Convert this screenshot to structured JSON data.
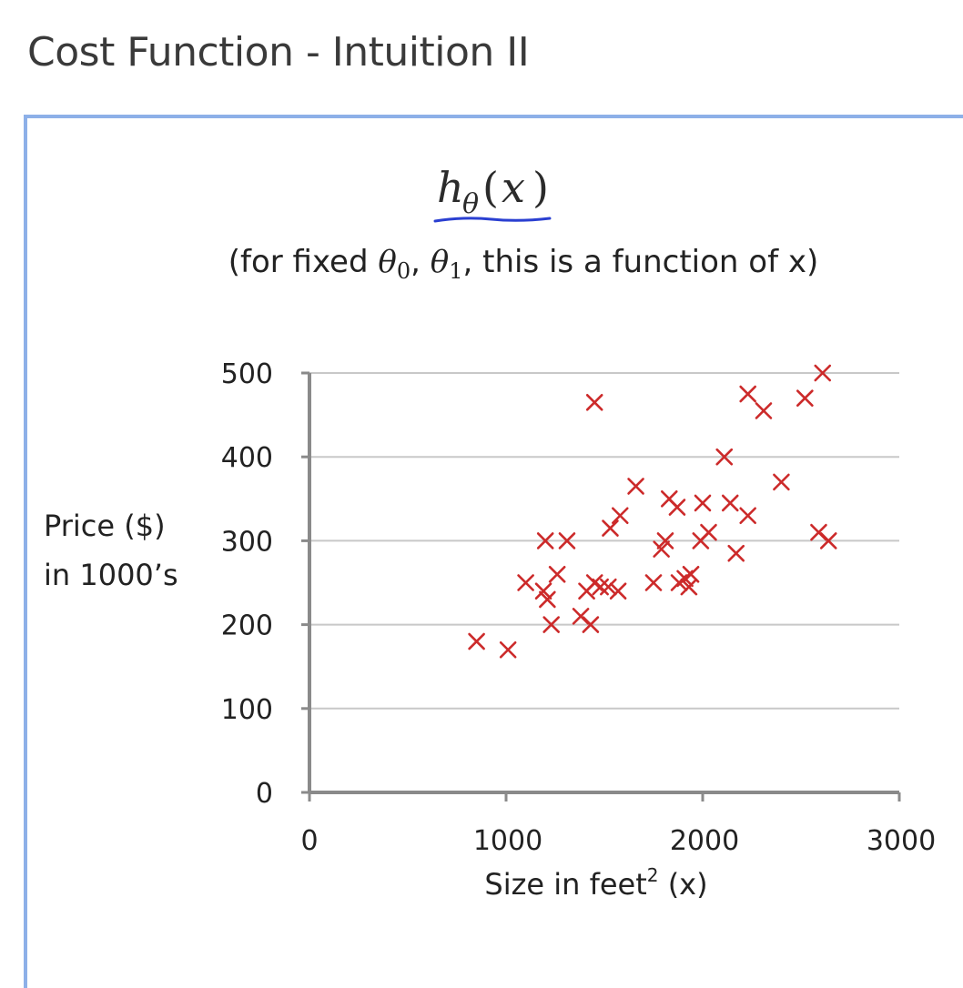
{
  "page": {
    "title": "Cost Function - Intuition II"
  },
  "colors": {
    "frame_border": "#8db0e8",
    "marker": "#cc2a2a",
    "axis": "#8a8a8a",
    "grid": "#c8c8c8",
    "underline": "#2a3fd1"
  },
  "figure": {
    "formula": {
      "h": "h",
      "theta": "θ",
      "x": "x"
    },
    "caption": {
      "prefix": "(for fixed ",
      "theta0": "θ",
      "sub0": "0",
      "theta1": "θ",
      "sub1": "1",
      "suffix": ", this is a function of x)"
    }
  },
  "chart_data": {
    "type": "scatter",
    "ylabel_line1": "Price ($)",
    "ylabel_line2": "in 1000’s",
    "xlabel_main": "Size in feet",
    "xlabel_sup": "2",
    "xlabel_tail": " (x)",
    "xlim": [
      0,
      3000
    ],
    "ylim": [
      0,
      500
    ],
    "xticks": [
      0,
      1000,
      2000,
      3000
    ],
    "yticks": [
      0,
      100,
      200,
      300,
      400,
      500
    ],
    "grid": true,
    "marker": "x",
    "points": [
      [
        850,
        180
      ],
      [
        1010,
        170
      ],
      [
        1100,
        250
      ],
      [
        1190,
        240
      ],
      [
        1210,
        230
      ],
      [
        1230,
        200
      ],
      [
        1260,
        260
      ],
      [
        1200,
        300
      ],
      [
        1310,
        300
      ],
      [
        1450,
        465
      ],
      [
        1380,
        210
      ],
      [
        1410,
        240
      ],
      [
        1430,
        200
      ],
      [
        1450,
        250
      ],
      [
        1480,
        245
      ],
      [
        1520,
        245
      ],
      [
        1570,
        240
      ],
      [
        1530,
        315
      ],
      [
        1580,
        330
      ],
      [
        1660,
        365
      ],
      [
        1750,
        250
      ],
      [
        1790,
        290
      ],
      [
        1810,
        300
      ],
      [
        1830,
        350
      ],
      [
        1870,
        340
      ],
      [
        1880,
        250
      ],
      [
        1910,
        255
      ],
      [
        1930,
        245
      ],
      [
        1940,
        260
      ],
      [
        1990,
        300
      ],
      [
        2000,
        345
      ],
      [
        2030,
        310
      ],
      [
        2110,
        400
      ],
      [
        2140,
        345
      ],
      [
        2170,
        285
      ],
      [
        2230,
        330
      ],
      [
        2230,
        475
      ],
      [
        2310,
        455
      ],
      [
        2400,
        370
      ],
      [
        2520,
        470
      ],
      [
        2590,
        310
      ],
      [
        2610,
        500
      ],
      [
        2640,
        300
      ]
    ]
  }
}
